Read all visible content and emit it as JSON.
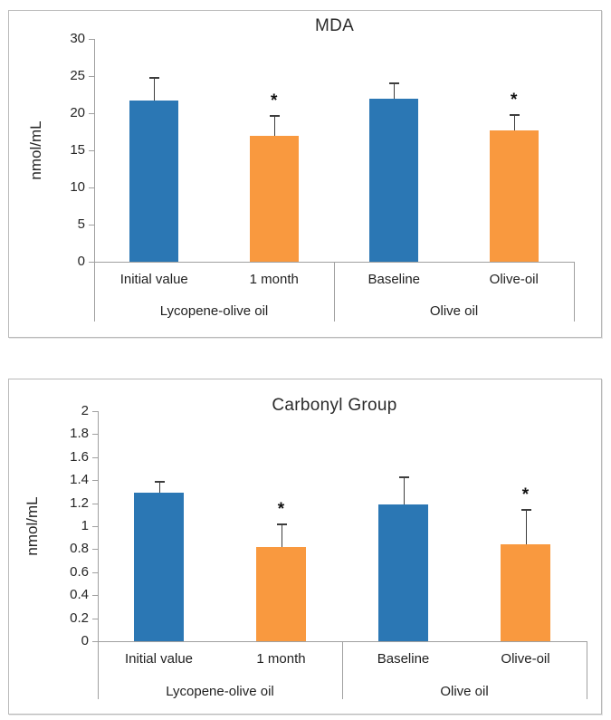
{
  "page": {
    "background": "#ffffff",
    "description_colors": {
      "bar_blue": "#2b77b4",
      "bar_orange": "#f9993f",
      "axis_gray": "#a0a0a0"
    }
  },
  "chart_data": [
    {
      "type": "bar",
      "title": "MDA",
      "xlabel": "",
      "ylabel": "nmol/mL",
      "ylim": [
        0,
        30
      ],
      "ytick_step": 5,
      "ytick_labels": [
        "0",
        "5",
        "10",
        "15",
        "20",
        "25",
        "30"
      ],
      "grid": false,
      "legend": "none",
      "significance_marker": "*",
      "categories": [
        "Initial value",
        "1 month",
        "Baseline",
        "Olive-oil"
      ],
      "groups": [
        {
          "label": "Lycopene-olive oil",
          "span": 2
        },
        {
          "label": "Olive oil",
          "span": 2
        }
      ],
      "bars": [
        {
          "category": "Initial value",
          "value": 21.7,
          "error_top": 24.9,
          "color": "#2b77b4",
          "significant": false
        },
        {
          "category": "1 month",
          "value": 16.9,
          "error_top": 19.8,
          "color": "#f9993f",
          "significant": true
        },
        {
          "category": "Baseline",
          "value": 22.0,
          "error_top": 24.1,
          "color": "#2b77b4",
          "significant": false
        },
        {
          "category": "Olive-oil",
          "value": 17.7,
          "error_top": 19.9,
          "color": "#f9993f",
          "significant": true
        }
      ]
    },
    {
      "type": "bar",
      "title": "Carbonyl Group",
      "xlabel": "",
      "ylabel": "nmol/mL",
      "ylim": [
        0,
        2
      ],
      "ytick_step": 0.2,
      "ytick_labels": [
        "0",
        "0.2",
        "0.4",
        "0.6",
        "0.8",
        "1",
        "1.2",
        "1.4",
        "1.6",
        "1.8",
        "2"
      ],
      "grid": false,
      "legend": "none",
      "significance_marker": "*",
      "categories": [
        "Initial value",
        "1 month",
        "Baseline",
        "Olive-oil"
      ],
      "groups": [
        {
          "label": "Lycopene-olive oil",
          "span": 2
        },
        {
          "label": "Olive oil",
          "span": 2
        }
      ],
      "bars": [
        {
          "category": "Initial value",
          "value": 1.29,
          "error_top": 1.39,
          "color": "#2b77b4",
          "significant": false
        },
        {
          "category": "1 month",
          "value": 0.82,
          "error_top": 1.02,
          "color": "#f9993f",
          "significant": true
        },
        {
          "category": "Baseline",
          "value": 1.19,
          "error_top": 1.43,
          "color": "#2b77b4",
          "significant": false
        },
        {
          "category": "Olive-oil",
          "value": 0.84,
          "error_top": 1.15,
          "color": "#f9993f",
          "significant": true
        }
      ]
    }
  ]
}
